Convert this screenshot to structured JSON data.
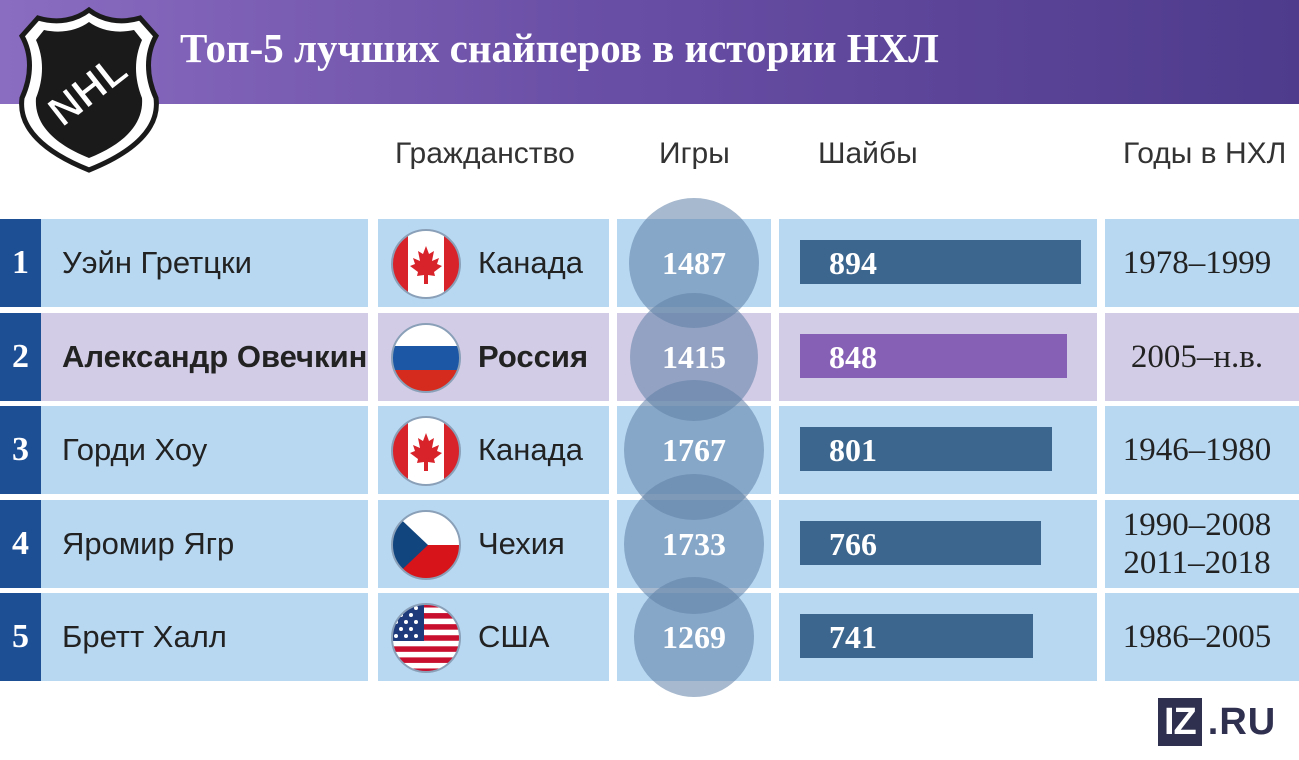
{
  "header": {
    "title": "Топ-5 лучших снайперов в истории НХЛ",
    "logo_text": "NHL"
  },
  "columns": {
    "citizenship": "Гражданство",
    "games": "Игры",
    "goals": "Шайбы",
    "years": "Годы в НХЛ"
  },
  "colors": {
    "header_start": "#8a6cc0",
    "header_end": "#4e3b8c",
    "row_bg": "#b8d8f2",
    "highlight_bg": "#d3cce6",
    "rank_bg": "#1d4f95",
    "bar": "#3d668e",
    "bar_highlight": "#8660b4",
    "games_circle": "#5f80a5"
  },
  "players": [
    {
      "rank": "1",
      "name": "Уэйн Гретцки",
      "flag": "canada-flag-icon",
      "country": "Канада",
      "games": "1487",
      "goals": 894,
      "goals_label": "894",
      "years": [
        "1978–1999"
      ],
      "highlight": false
    },
    {
      "rank": "2",
      "name": "Александр Овечкин",
      "flag": "russia-flag-icon",
      "country": "Россия",
      "games": "1415",
      "goals": 848,
      "goals_label": "848",
      "years": [
        "2005–н.в."
      ],
      "highlight": true
    },
    {
      "rank": "3",
      "name": "Горди Хоу",
      "flag": "canada-flag-icon",
      "country": "Канада",
      "games": "1767",
      "goals": 801,
      "goals_label": "801",
      "years": [
        "1946–1980"
      ],
      "highlight": false
    },
    {
      "rank": "4",
      "name": "Яромир Ягр",
      "flag": "czech-flag-icon",
      "country": "Чехия",
      "games": "1733",
      "goals": 766,
      "goals_label": "766",
      "years": [
        "1990–2008",
        "2011–2018"
      ],
      "highlight": false
    },
    {
      "rank": "5",
      "name": "Бретт Халл",
      "flag": "usa-flag-icon",
      "country": "США",
      "games": "1269",
      "goals": 741,
      "goals_label": "741",
      "years": [
        "1986–2005"
      ],
      "highlight": false
    }
  ],
  "chart_data": {
    "type": "table",
    "title": "Топ-5 лучших снайперов в истории НХЛ",
    "columns": [
      "Гражданство",
      "Игры",
      "Шайбы",
      "Годы в НХЛ"
    ],
    "categories": [
      "Уэйн Гретцки",
      "Александр Овечкин",
      "Горди Хоу",
      "Яромир Ягр",
      "Бретт Халл"
    ],
    "series": [
      {
        "name": "Игры",
        "values": [
          1487,
          1415,
          1767,
          1733,
          1269
        ]
      },
      {
        "name": "Шайбы",
        "values": [
          894,
          848,
          801,
          766,
          741
        ]
      }
    ],
    "countries": [
      "Канада",
      "Россия",
      "Канада",
      "Чехия",
      "США"
    ],
    "years": [
      "1978–1999",
      "2005–н.в.",
      "1946–1980",
      "1990–2008, 2011–2018",
      "1986–2005"
    ],
    "highlighted_row": 2
  },
  "footer": {
    "brand_iz": "IZ",
    "brand_ru": ".RU"
  }
}
